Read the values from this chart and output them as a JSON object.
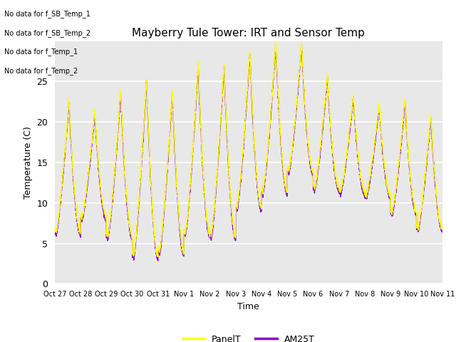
{
  "title": "Mayberry Tule Tower: IRT and Sensor Temp",
  "xlabel": "Time",
  "ylabel": "Temperature (C)",
  "ylim": [
    0,
    30
  ],
  "yticks": [
    0,
    5,
    10,
    15,
    20,
    25
  ],
  "panel_color": "#ffff00",
  "am25_color": "#8800cc",
  "fig_bg_color": "#ffffff",
  "plot_bg_color": "#e8e8e8",
  "grid_color": "#ffffff",
  "legend_labels": [
    "PanelT",
    "AM25T"
  ],
  "annotations": [
    "No data for f_SB_Temp_1",
    "No data for f_SB_Temp_2",
    "No data for f_Temp_1",
    "No data for f_Temp_2"
  ],
  "x_tick_labels": [
    "Oct 27",
    "Oct 28",
    "Oct 29",
    "Oct 30",
    "Oct 31",
    "Nov 1",
    "Nov 2",
    "Nov 3",
    "Nov 4",
    "Nov 5",
    "Nov 6",
    "Nov 7",
    "Nov 8",
    "Nov 9",
    "Nov 10",
    "Nov 11"
  ],
  "day_peaks": [
    22.5,
    21.0,
    23.5,
    25.0,
    23.5,
    27.0,
    27.0,
    28.5,
    29.5,
    29.5,
    25.5,
    23.0,
    22.0,
    22.5,
    20.5
  ],
  "day_lows": [
    6.0,
    7.8,
    5.5,
    3.0,
    3.5,
    5.8,
    5.5,
    9.0,
    11.0,
    13.5,
    11.5,
    11.0,
    10.5,
    8.5,
    6.5
  ],
  "n_days": 15,
  "n_pts_per_day": 288,
  "panel_lw": 1.0,
  "am25_lw": 1.0,
  "title_fontsize": 11,
  "label_fontsize": 9,
  "tick_fontsize": 7,
  "annot_fontsize": 7
}
